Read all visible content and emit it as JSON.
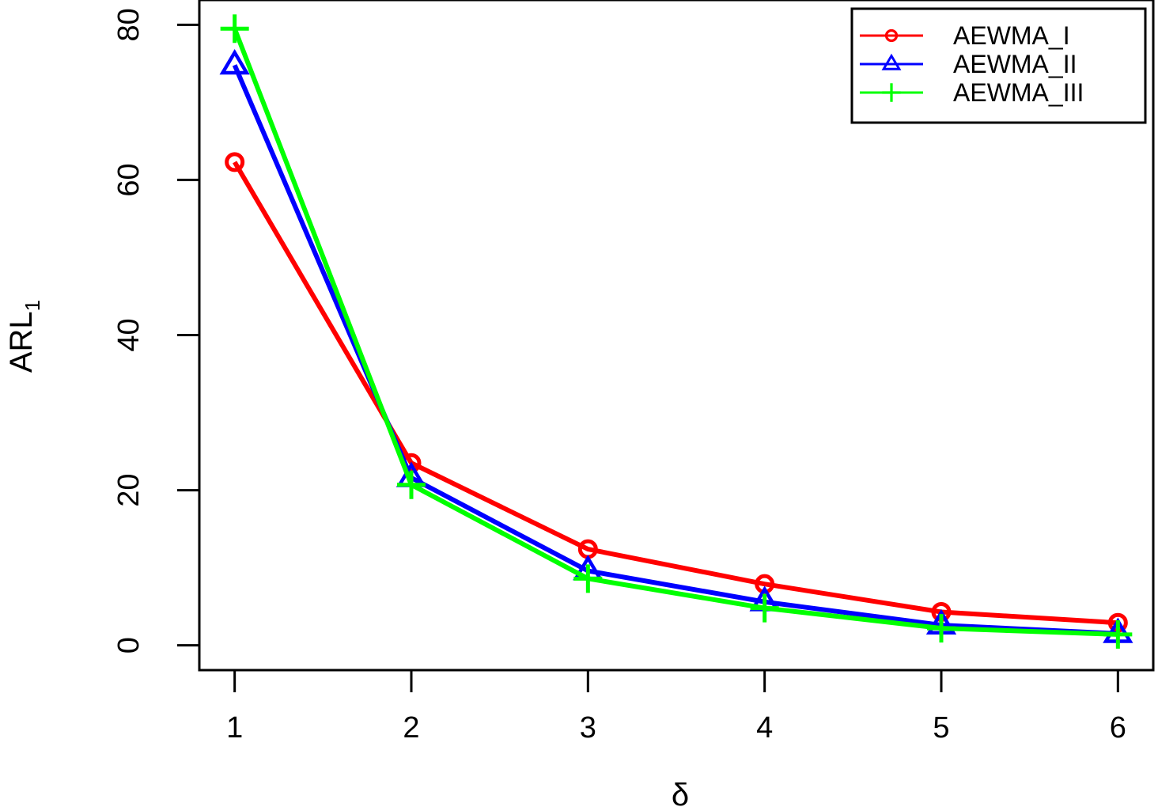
{
  "chart_data": {
    "type": "line",
    "xlabel": "δ",
    "ylabel": "ARL",
    "ylabel_subscript": "1",
    "x": [
      1,
      2,
      3,
      4,
      5,
      6
    ],
    "x_ticks": [
      "1",
      "2",
      "3",
      "4",
      "5",
      "6"
    ],
    "y_ticks": [
      "0",
      "20",
      "40",
      "60",
      "80"
    ],
    "xlim": [
      0.8,
      6.2
    ],
    "ylim": [
      -3.2,
      83.2
    ],
    "grid": false,
    "legend_position": "top-right",
    "series": [
      {
        "name": "AEWMA_I",
        "color": "#ff0000",
        "marker": "circle",
        "values": [
          62.3,
          23.5,
          12.4,
          7.9,
          4.3,
          2.9
        ]
      },
      {
        "name": "AEWMA_II",
        "color": "#0000ff",
        "marker": "triangle",
        "values": [
          74.8,
          21.6,
          9.6,
          5.6,
          2.6,
          1.5
        ]
      },
      {
        "name": "AEWMA_III",
        "color": "#00ff00",
        "marker": "plus",
        "values": [
          79.5,
          20.7,
          8.6,
          4.8,
          2.2,
          1.4
        ]
      }
    ]
  }
}
